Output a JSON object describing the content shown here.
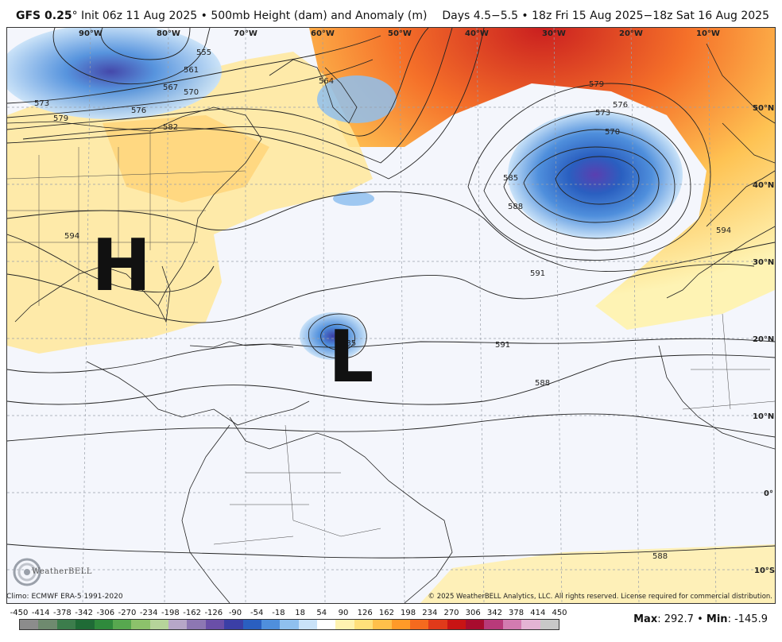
{
  "header": {
    "model": "GFS 0.25",
    "degree_mark": "°",
    "init": "Init 06z 11 Aug 2025",
    "product": "500mb Height (dam) and Anomaly (m)",
    "valid": "Days 4.5−5.5 • 18z Fri 15 Aug 2025−18z Sat 16 Aug 2025"
  },
  "map": {
    "longitude_labels": [
      "90°W",
      "80°W",
      "70°W",
      "60°W",
      "50°W",
      "40°W",
      "30°W",
      "20°W",
      "10°W"
    ],
    "latitude_labels": [
      "50°N",
      "40°N",
      "30°N",
      "20°N",
      "10°N",
      "0°",
      "10°S"
    ],
    "contour_labels": [
      "573",
      "579",
      "576",
      "582",
      "561",
      "567",
      "570",
      "555",
      "564",
      "579",
      "576",
      "573",
      "570",
      "585",
      "588",
      "594",
      "594",
      "591",
      "591",
      "588",
      "585",
      "588"
    ],
    "pressure_systems": [
      {
        "letter": "H"
      },
      {
        "letter": "L"
      }
    ]
  },
  "footer": {
    "climo": "Climo: ECMWF ERA-5 1991-2020",
    "copyright": "© 2025 WeatherBELL Analytics, LLC. All rights reserved. License required for commercial distribution.",
    "logo_text": "WeatherBELL"
  },
  "colorbar": {
    "labels": [
      "-450",
      "-414",
      "-378",
      "-342",
      "-306",
      "-270",
      "-234",
      "-198",
      "-162",
      "-126",
      "-90",
      "-54",
      "-18",
      "18",
      "54",
      "90",
      "126",
      "162",
      "198",
      "234",
      "270",
      "306",
      "342",
      "378",
      "414",
      "450"
    ],
    "colors": [
      "#8c8c8c",
      "#6f8a6f",
      "#3c7d4c",
      "#1f6b36",
      "#2f8a3c",
      "#57a84f",
      "#8cc26b",
      "#b6d49a",
      "#b7a7c8",
      "#8d77b3",
      "#6a4fa8",
      "#3b3fa6",
      "#2a5fc0",
      "#4f8fdc",
      "#8fc0ee",
      "#c9e2f8",
      "#ffffff",
      "#fff3b0",
      "#ffe07a",
      "#ffc04a",
      "#ff9a28",
      "#f56a1e",
      "#e03a1a",
      "#c81414",
      "#a80c2e",
      "#b83a7a",
      "#d27bb0",
      "#e4b4d4",
      "#c8c8c8"
    ]
  },
  "stats": {
    "max_label": "Max",
    "max_value": "292.7",
    "min_label": "Min",
    "min_value": "-145.9"
  }
}
